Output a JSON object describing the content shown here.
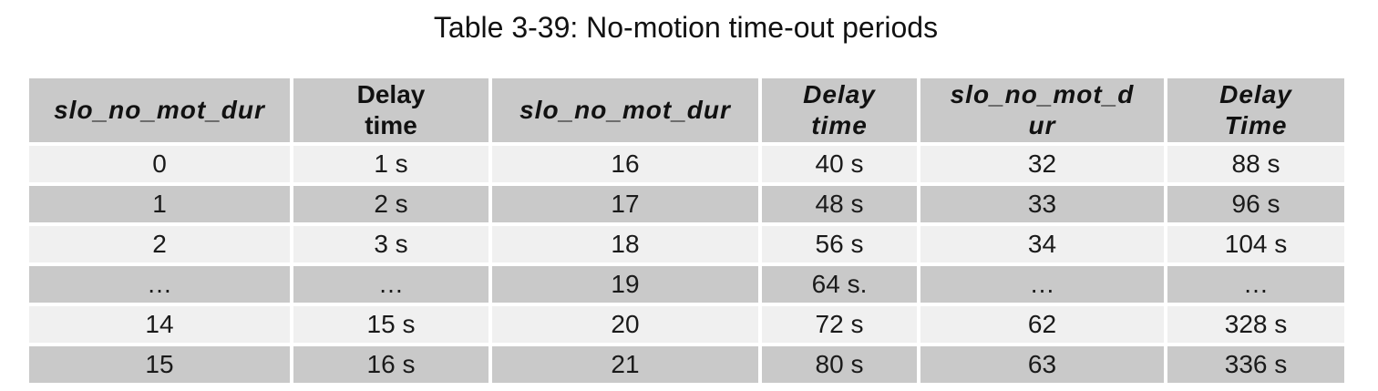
{
  "caption": "Table 3-39: No-motion time-out periods",
  "headers": [
    {
      "lines": [
        "slo_no_mot_dur"
      ],
      "italic": true
    },
    {
      "lines": [
        "Delay",
        "time"
      ],
      "italic": false
    },
    {
      "lines": [
        "slo_no_mot_dur"
      ],
      "italic": true
    },
    {
      "lines": [
        "Delay",
        "time"
      ],
      "italic": true
    },
    {
      "lines": [
        "slo_no_mot_d",
        "ur"
      ],
      "italic": true
    },
    {
      "lines": [
        "Delay",
        "Time"
      ],
      "italic": true
    }
  ],
  "rows": [
    [
      "0",
      "1 s",
      "16",
      "40 s",
      "32",
      "88 s"
    ],
    [
      "1",
      "2 s",
      "17",
      "48 s",
      "33",
      "96 s"
    ],
    [
      "2",
      "3 s",
      "18",
      "56 s",
      "34",
      "104 s"
    ],
    [
      "…",
      "…",
      "19",
      "64 s.",
      "…",
      "…"
    ],
    [
      "14",
      "15 s",
      "20",
      "72 s",
      "62",
      "328 s"
    ],
    [
      "15",
      "16 s",
      "21",
      "80 s",
      "63",
      "336 s"
    ]
  ],
  "colors": {
    "header_bg": "#c9c9c9",
    "row_light": "#f0f0f0",
    "row_dark": "#c9c9c9"
  }
}
